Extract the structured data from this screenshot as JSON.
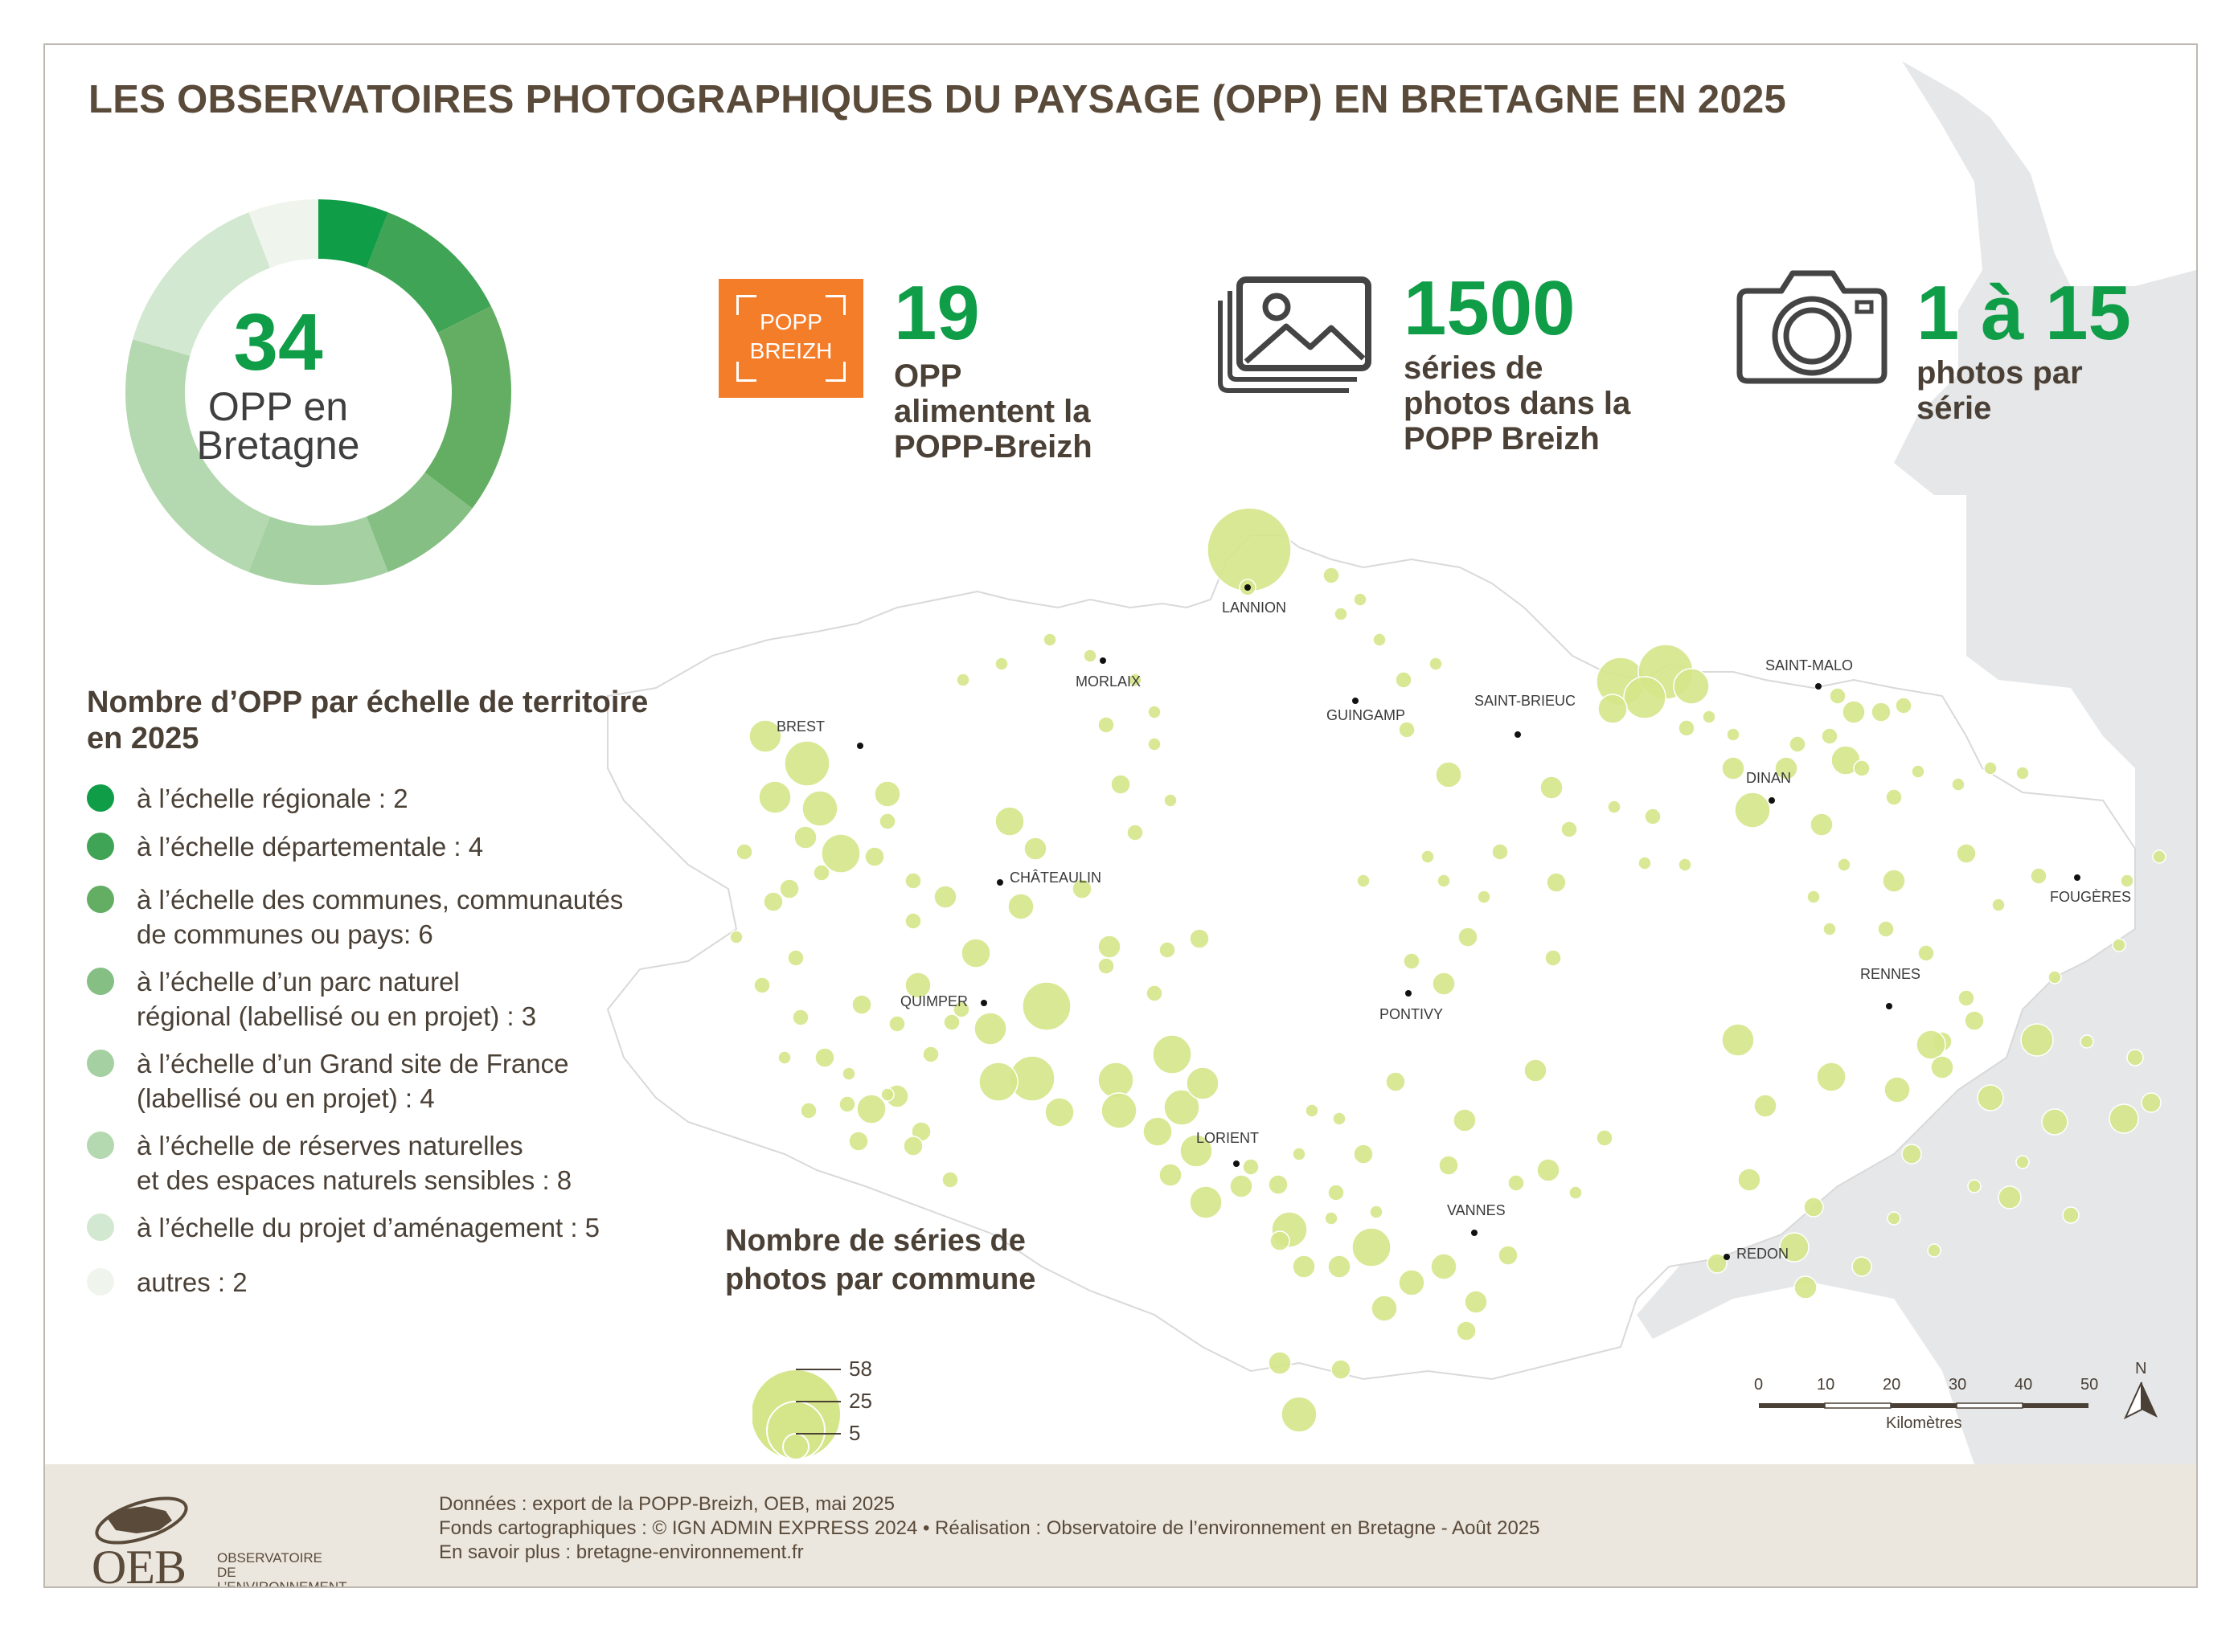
{
  "title": "LES OBSERVATOIRES PHOTOGRAPHIQUES DU PAYSAGE (OPP) EN BRETAGNE EN 2025",
  "donut": {
    "total": "34",
    "label_line1": "OPP en",
    "label_line2": "Bretagne",
    "segments": [
      {
        "value": 2,
        "color": "#0f9d47"
      },
      {
        "value": 4,
        "color": "#3fa455"
      },
      {
        "value": 6,
        "color": "#64ae64"
      },
      {
        "value": 3,
        "color": "#85bf84"
      },
      {
        "value": 4,
        "color": "#a4d0a2"
      },
      {
        "value": 8,
        "color": "#b4d8b0"
      },
      {
        "value": 5,
        "color": "#d3e8d0"
      },
      {
        "value": 2,
        "color": "#eff5ec"
      }
    ]
  },
  "legend": {
    "title": "Nombre d’OPP par échelle de territoire en 2025",
    "items": [
      {
        "label": "à l’échelle régionale : 2",
        "color": "#0f9d47"
      },
      {
        "label": "à l’échelle départementale : 4",
        "color": "#3fa455"
      },
      {
        "label": "à l’échelle des communes, communautés\nde communes ou pays: 6",
        "color": "#64ae64"
      },
      {
        "label": "à l’échelle d’un parc naturel\nrégional (labellisé ou en projet) : 3",
        "color": "#85bf84"
      },
      {
        "label": "à l’échelle d’un Grand site de France\n(labellisé ou en projet) : 4",
        "color": "#a4d0a2"
      },
      {
        "label": "à l’échelle de réserves naturelles\net des espaces naturels sensibles : 8",
        "color": "#b4d8b0"
      },
      {
        "label": "à l’échelle du projet d’aménagement : 5",
        "color": "#d3e8d0"
      },
      {
        "label": "autres : 2",
        "color": "#eff5ec"
      }
    ]
  },
  "stats": {
    "popp_logo": "POPP\nBREIZH",
    "opp_count": "19",
    "opp_text": "OPP\nalimentent la\nPOPP-Breizh",
    "series_count": "1500",
    "series_text": "séries de\nphotos dans la\nPOPP Breizh",
    "photos_range": "1 à 15",
    "photos_text": "photos par\nsérie"
  },
  "series_legend": {
    "title": "Nombre de séries de\nphotos par commune",
    "sizes": [
      {
        "value": 58,
        "label": "58"
      },
      {
        "value": 25,
        "label": "25"
      },
      {
        "value": 5,
        "label": "5"
      }
    ]
  },
  "cities": [
    {
      "name": "LANNION"
    },
    {
      "name": "MORLAIX"
    },
    {
      "name": "GUINGAMP"
    },
    {
      "name": "SAINT-BRIEUC"
    },
    {
      "name": "SAINT-MALO"
    },
    {
      "name": "BREST"
    },
    {
      "name": "DINAN"
    },
    {
      "name": "CHÂTEAULIN"
    },
    {
      "name": "FOUGÈRES"
    },
    {
      "name": "RENNES"
    },
    {
      "name": "QUIMPER"
    },
    {
      "name": "PONTIVY"
    },
    {
      "name": "LORIENT"
    },
    {
      "name": "VANNES"
    },
    {
      "name": "REDON"
    }
  ],
  "scale": {
    "ticks": [
      "0",
      "10",
      "20",
      "30",
      "40",
      "50"
    ],
    "unit": "Kilomètres",
    "north": "N"
  },
  "colors": {
    "accent_green": "#0f9d47",
    "bubble": "#d5e58a",
    "popp_orange": "#f47d2a",
    "footer_bg": "#ebe7de",
    "neighbor_land": "#e6e7e8"
  },
  "footer": {
    "logo_mark": "OEB",
    "logo_name": "OBSERVATOIRE\nDE L’ENVIRONNEMENT\nEN BRETAGNE",
    "line1": "Données : export de la POPP-Breizh, OEB, mai 2025",
    "line2": "Fonds cartographiques : © IGN ADMIN EXPRESS 2024 • Réalisation : Observatoire de l’environnement en Bretagne - Août 2025",
    "line3": "En savoir plus : bretagne-environnement.fr"
  }
}
